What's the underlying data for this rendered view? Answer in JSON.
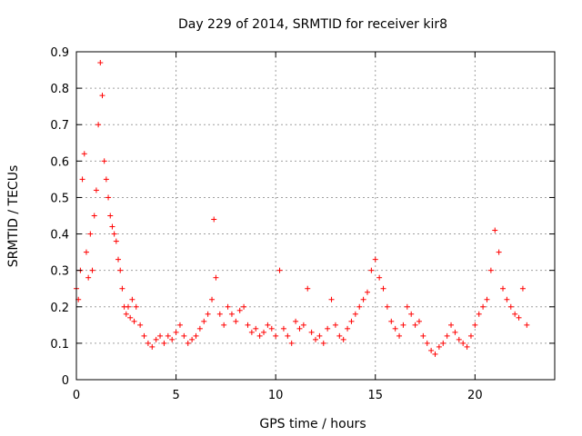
{
  "chart_data": {
    "type": "scatter",
    "title": "Day 229 of 2014, SRMTID for receiver kir8",
    "xlabel": "GPS time / hours",
    "ylabel": "SRMTID / TECUs",
    "xlim": [
      0,
      24
    ],
    "ylim": [
      0,
      0.9
    ],
    "grid": true,
    "marker": "+",
    "series": [
      {
        "name": "SRMTID",
        "color": "#ff0000",
        "x": [
          0.0,
          0.1,
          0.2,
          0.3,
          0.4,
          0.5,
          0.6,
          0.7,
          0.8,
          0.9,
          1.0,
          1.1,
          1.2,
          1.3,
          1.4,
          1.5,
          1.6,
          1.7,
          1.8,
          1.9,
          2.0,
          2.1,
          2.2,
          2.3,
          2.4,
          2.5,
          2.6,
          2.7,
          2.8,
          2.9,
          3.0,
          3.2,
          3.4,
          3.6,
          3.8,
          4.0,
          4.2,
          4.4,
          4.6,
          4.8,
          5.0,
          5.2,
          5.4,
          5.6,
          5.8,
          6.0,
          6.2,
          6.4,
          6.6,
          6.8,
          6.9,
          7.0,
          7.2,
          7.4,
          7.6,
          7.8,
          8.0,
          8.2,
          8.4,
          8.6,
          8.8,
          9.0,
          9.2,
          9.4,
          9.6,
          9.8,
          10.0,
          10.2,
          10.4,
          10.6,
          10.8,
          11.0,
          11.2,
          11.4,
          11.6,
          11.8,
          12.0,
          12.2,
          12.4,
          12.6,
          12.8,
          13.0,
          13.2,
          13.4,
          13.6,
          13.8,
          14.0,
          14.2,
          14.4,
          14.6,
          14.8,
          15.0,
          15.2,
          15.4,
          15.6,
          15.8,
          16.0,
          16.2,
          16.4,
          16.6,
          16.8,
          17.0,
          17.2,
          17.4,
          17.6,
          17.8,
          18.0,
          18.2,
          18.4,
          18.6,
          18.8,
          19.0,
          19.2,
          19.4,
          19.6,
          19.8,
          20.0,
          20.2,
          20.4,
          20.6,
          20.8,
          21.0,
          21.2,
          21.4,
          21.6,
          21.8,
          22.0,
          22.2,
          22.4,
          22.6
        ],
        "values": [
          0.25,
          0.22,
          0.3,
          0.55,
          0.62,
          0.35,
          0.28,
          0.4,
          0.3,
          0.45,
          0.52,
          0.7,
          0.87,
          0.78,
          0.6,
          0.55,
          0.5,
          0.45,
          0.42,
          0.4,
          0.38,
          0.33,
          0.3,
          0.25,
          0.2,
          0.18,
          0.2,
          0.17,
          0.22,
          0.16,
          0.2,
          0.15,
          0.12,
          0.1,
          0.09,
          0.11,
          0.12,
          0.1,
          0.12,
          0.11,
          0.13,
          0.15,
          0.12,
          0.1,
          0.11,
          0.12,
          0.14,
          0.16,
          0.18,
          0.22,
          0.44,
          0.28,
          0.18,
          0.15,
          0.2,
          0.18,
          0.16,
          0.19,
          0.2,
          0.15,
          0.13,
          0.14,
          0.12,
          0.13,
          0.15,
          0.14,
          0.12,
          0.3,
          0.14,
          0.12,
          0.1,
          0.16,
          0.14,
          0.15,
          0.25,
          0.13,
          0.11,
          0.12,
          0.1,
          0.14,
          0.22,
          0.15,
          0.12,
          0.11,
          0.14,
          0.16,
          0.18,
          0.2,
          0.22,
          0.24,
          0.3,
          0.33,
          0.28,
          0.25,
          0.2,
          0.16,
          0.14,
          0.12,
          0.15,
          0.2,
          0.18,
          0.15,
          0.16,
          0.12,
          0.1,
          0.08,
          0.07,
          0.09,
          0.1,
          0.12,
          0.15,
          0.13,
          0.11,
          0.1,
          0.09,
          0.12,
          0.15,
          0.18,
          0.2,
          0.22,
          0.3,
          0.41,
          0.35,
          0.25,
          0.22,
          0.2,
          0.18,
          0.17,
          0.25,
          0.15
        ]
      }
    ]
  }
}
